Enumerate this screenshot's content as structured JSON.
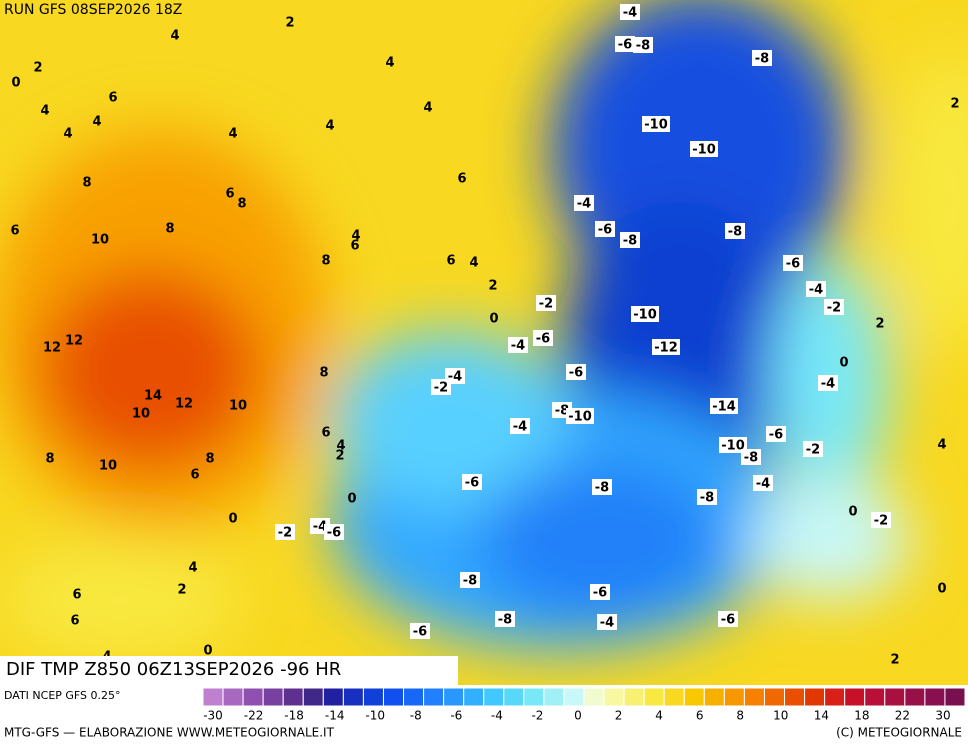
{
  "header": {
    "run": "RUN GFS 08SEP2026 18Z"
  },
  "map": {
    "title": "DIF TMP Z850 06Z13SEP2026 -96 HR",
    "labels": [
      4,
      2,
      0,
      2,
      4,
      6,
      4,
      4,
      4,
      4,
      4,
      4,
      8,
      6,
      8,
      6,
      6,
      10,
      8,
      4,
      6,
      8,
      6,
      4,
      2,
      0,
      12,
      12,
      8,
      14,
      10,
      12,
      10,
      6,
      4,
      2,
      8,
      10,
      8,
      6,
      0,
      0,
      4,
      2,
      6,
      6,
      0,
      4,
      2,
      2,
      0,
      0,
      4,
      0,
      2,
      -4,
      -6,
      -8,
      -8,
      -10,
      -10,
      -4,
      -6,
      -8,
      -8,
      -6,
      -4,
      -2,
      -2,
      -10,
      -12,
      -4,
      -6,
      -4,
      -2,
      -6,
      -4,
      -14,
      -8,
      -10,
      -4,
      -6,
      -10,
      -8,
      -2,
      -6,
      -8,
      -8,
      -4,
      -2,
      -4,
      -6,
      -2,
      -8,
      -6,
      -8,
      -6,
      -4,
      -6
    ]
  },
  "legend": {
    "source": "DATI NCEP GFS 0.25°",
    "colors": [
      "#c080d0",
      "#a868c0",
      "#9050b0",
      "#7840a0",
      "#603090",
      "#402888",
      "#2020a0",
      "#1830c0",
      "#1040d8",
      "#1050f0",
      "#1868f8",
      "#2080ff",
      "#2898ff",
      "#30b0ff",
      "#40c8ff",
      "#58d8f8",
      "#78e8f8",
      "#a0f0f8",
      "#c8f8f8",
      "#f0fcd0",
      "#f8f8a0",
      "#f8f070",
      "#f8e840",
      "#f8d820",
      "#f8c800",
      "#f8b000",
      "#f89800",
      "#f88000",
      "#f06800",
      "#e85000",
      "#e03800",
      "#d82018",
      "#c81028",
      "#b81038",
      "#a81040",
      "#981048",
      "#881050",
      "#781050"
    ],
    "ticks": [
      -30,
      -22,
      -18,
      -14,
      -10,
      -8,
      -6,
      -4,
      -2,
      0,
      2,
      4,
      6,
      8,
      10,
      14,
      18,
      22,
      30
    ]
  },
  "footer": {
    "left": "MTG-GFS — ELABORAZIONE WWW.METEOGIORNALE.IT",
    "right": "(C) METEOGIORNALE"
  }
}
